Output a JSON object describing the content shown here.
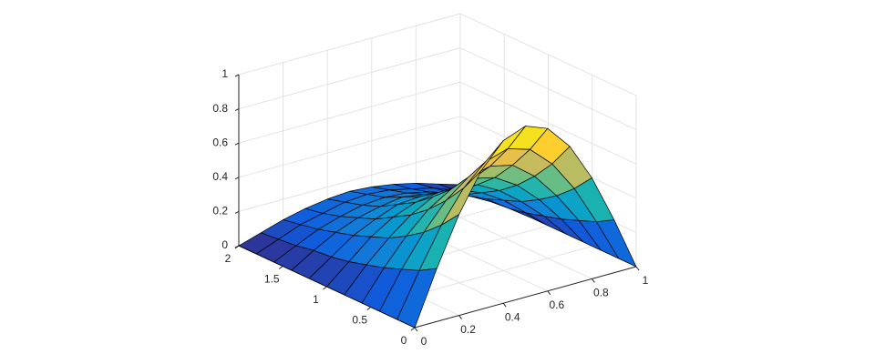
{
  "chart_data": {
    "type": "surface",
    "colormap": "parula",
    "grid": true,
    "x": [
      0,
      0.1,
      0.2,
      0.3,
      0.4,
      0.5,
      0.6,
      0.7,
      0.8,
      0.9,
      1
    ],
    "y": [
      0,
      0.2,
      0.4,
      0.6,
      0.8,
      1,
      1.2,
      1.4,
      1.6,
      1.8,
      2
    ],
    "z": [
      [
        0,
        0.31,
        0.59,
        0.81,
        0.95,
        1,
        0.95,
        0.81,
        0.59,
        0.31,
        0
      ],
      [
        0,
        0.25,
        0.48,
        0.66,
        0.78,
        0.82,
        0.78,
        0.66,
        0.48,
        0.25,
        0
      ],
      [
        0,
        0.21,
        0.39,
        0.54,
        0.64,
        0.67,
        0.64,
        0.54,
        0.39,
        0.21,
        0
      ],
      [
        0,
        0.17,
        0.32,
        0.44,
        0.52,
        0.55,
        0.52,
        0.44,
        0.32,
        0.17,
        0
      ],
      [
        0,
        0.14,
        0.26,
        0.36,
        0.43,
        0.45,
        0.43,
        0.36,
        0.26,
        0.14,
        0
      ],
      [
        0,
        0.11,
        0.22,
        0.3,
        0.35,
        0.37,
        0.35,
        0.3,
        0.22,
        0.11,
        0
      ],
      [
        0,
        0.09,
        0.18,
        0.24,
        0.29,
        0.3,
        0.29,
        0.24,
        0.18,
        0.09,
        0
      ],
      [
        0,
        0.08,
        0.15,
        0.2,
        0.23,
        0.25,
        0.23,
        0.2,
        0.15,
        0.08,
        0
      ],
      [
        0,
        0.06,
        0.12,
        0.16,
        0.19,
        0.2,
        0.19,
        0.16,
        0.12,
        0.06,
        0
      ],
      [
        0,
        0.05,
        0.1,
        0.13,
        0.16,
        0.17,
        0.16,
        0.13,
        0.1,
        0.05,
        0
      ],
      [
        0,
        0.04,
        0.08,
        0.11,
        0.13,
        0.14,
        0.13,
        0.11,
        0.08,
        0.04,
        0
      ]
    ],
    "xlim": [
      0,
      1
    ],
    "ylim": [
      0,
      2
    ],
    "zlim": [
      0,
      1
    ],
    "xticks": [
      0,
      0.2,
      0.4,
      0.6,
      0.8,
      1
    ],
    "yticks": [
      0,
      0.5,
      1,
      1.5,
      2
    ],
    "zticks": [
      0,
      0.2,
      0.4,
      0.6,
      0.8,
      1
    ]
  }
}
